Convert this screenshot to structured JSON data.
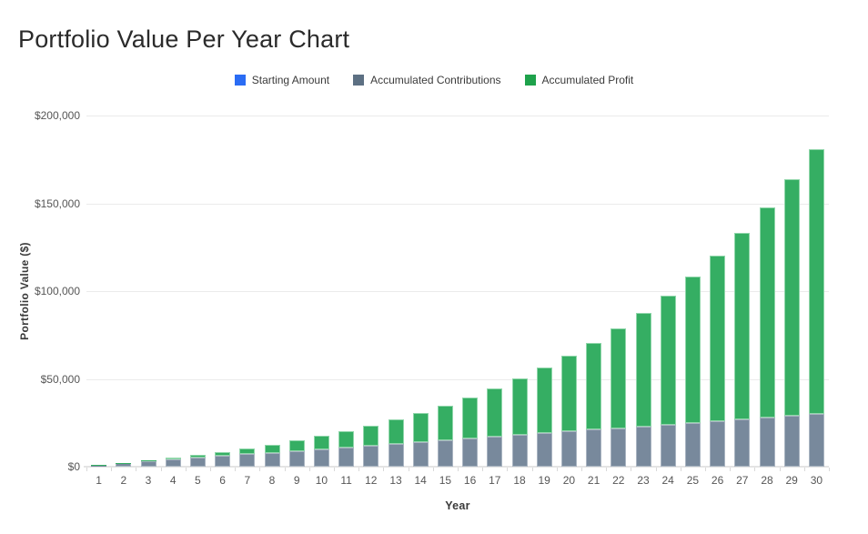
{
  "page": {
    "title": "Portfolio Value Per Year Chart"
  },
  "chart_data": {
    "type": "bar",
    "stacked": true,
    "title": "Portfolio Value Per Year Chart",
    "xlabel": "Year",
    "ylabel": "Portfolio Value ($)",
    "legend_position": "top",
    "grid": "horizontal-only",
    "ylim": [
      0,
      200000
    ],
    "yticks": [
      {
        "value": 0,
        "label": "$0"
      },
      {
        "value": 50000,
        "label": "$50,000"
      },
      {
        "value": 100000,
        "label": "$100,000"
      },
      {
        "value": 150000,
        "label": "$150,000"
      },
      {
        "value": 200000,
        "label": "$200,000"
      }
    ],
    "categories": [
      1,
      2,
      3,
      4,
      5,
      6,
      7,
      8,
      9,
      10,
      11,
      12,
      13,
      14,
      15,
      16,
      17,
      18,
      19,
      20,
      21,
      22,
      23,
      24,
      25,
      26,
      27,
      28,
      29,
      30
    ],
    "series": [
      {
        "name": "Starting Amount",
        "key": "starting-amount",
        "fill_color": "#2a6cf4",
        "border_color": "#7ea4f8",
        "legend_color": "#2a6cf4",
        "values": [
          0,
          0,
          0,
          0,
          0,
          0,
          0,
          0,
          0,
          0,
          0,
          0,
          0,
          0,
          0,
          0,
          0,
          0,
          0,
          0,
          0,
          0,
          0,
          0,
          0,
          0,
          0,
          0,
          0,
          0
        ]
      },
      {
        "name": "Accumulated Contributions",
        "key": "accumulated-contributions",
        "fill_color": "#78899c",
        "border_color": "#a9b4c1",
        "legend_color": "#5d7083",
        "values": [
          1000,
          2000,
          3000,
          4000,
          5000,
          6000,
          7000,
          8000,
          9000,
          10000,
          11000,
          12000,
          13000,
          14000,
          15000,
          16000,
          17000,
          18000,
          19000,
          20000,
          21000,
          22000,
          23000,
          24000,
          25000,
          26000,
          27000,
          28000,
          29000,
          30000
        ]
      },
      {
        "name": "Accumulated Profit",
        "key": "accumulated-profit",
        "fill_color": "#35ae63",
        "border_color": "#90d6aa",
        "legend_color": "#1ea24b",
        "values": [
          100,
          310,
          641,
          1105,
          1716,
          2487,
          3436,
          4579,
          5937,
          7531,
          9384,
          11523,
          13975,
          16772,
          19950,
          23545,
          27599,
          32159,
          37275,
          43003,
          49403,
          56543,
          64497,
          73347,
          83182,
          94100,
          106210,
          119631,
          134494,
          150943
        ]
      }
    ],
    "totals": [
      1100,
      2310,
      3641,
      5105,
      6716,
      8487,
      10436,
      12579,
      14937,
      17531,
      20384,
      23523,
      26975,
      30772,
      34950,
      39545,
      44599,
      50159,
      56275,
      63003,
      70403,
      78543,
      87497,
      97347,
      108182,
      120100,
      133210,
      147631,
      163494,
      180943
    ]
  }
}
